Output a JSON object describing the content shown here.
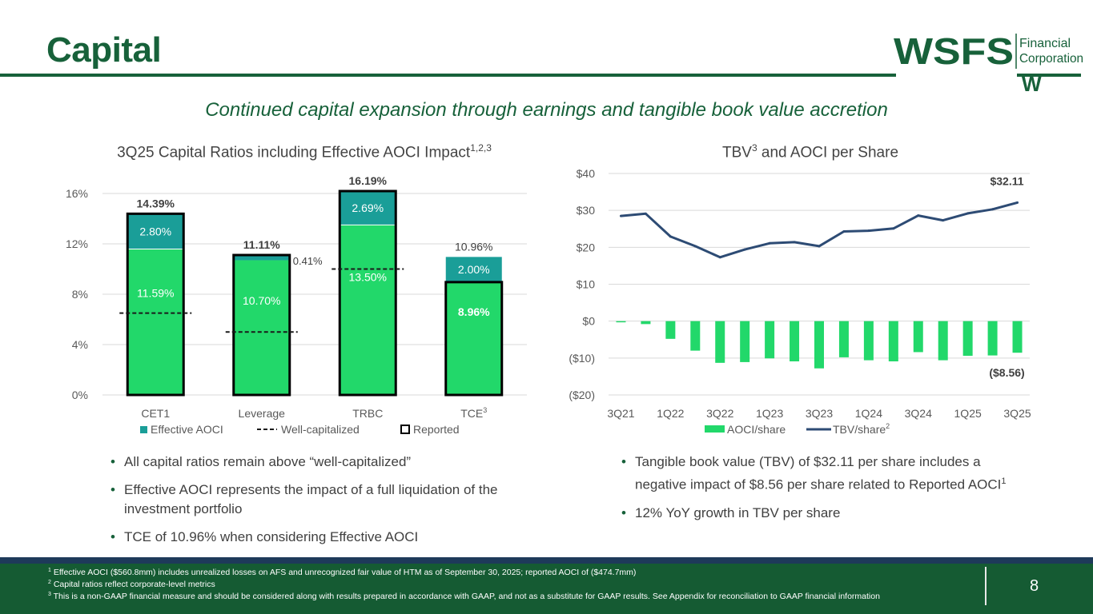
{
  "page": {
    "title": "Capital",
    "subtitle": "Continued capital expansion through earnings and tangible book value accretion",
    "page_number": "8",
    "logo": {
      "text_main": "WSFS",
      "text_line1": "Financial",
      "text_line2": "Corporation",
      "mark": "W"
    }
  },
  "colors": {
    "brand_green": "#17613a",
    "bar_green": "#22d86a",
    "aoci_teal": "#1a9e98",
    "line_navy": "#2d4b74",
    "footer_green": "#155b33",
    "footer_navy": "#1e3a5a"
  },
  "left_chart_title": {
    "text": "3Q25 Capital Ratios including Effective AOCI Impact",
    "sup": "1,2,3"
  },
  "right_chart_title": {
    "pre": "TBV",
    "sup": "3",
    "post": " and AOCI per Share"
  },
  "chart_data": [
    {
      "type": "bar",
      "title": "3Q25 Capital Ratios including Effective AOCI Impact",
      "categories": [
        "CET1",
        "Leverage",
        "TRBC",
        "TCE"
      ],
      "category_sups": [
        "",
        "",
        "",
        "3"
      ],
      "ylim": [
        0,
        16
      ],
      "yticks": [
        0,
        4,
        8,
        12,
        16
      ],
      "ytick_labels": [
        "0%",
        "4%",
        "8%",
        "12%",
        "16%"
      ],
      "series": [
        {
          "name": "Reported",
          "values": [
            11.59,
            10.7,
            13.5,
            8.96
          ],
          "labels": [
            "11.59%",
            "10.70%",
            "13.50%",
            "8.96%"
          ]
        },
        {
          "name": "Effective AOCI",
          "values": [
            2.8,
            0.41,
            2.69,
            2.0
          ],
          "labels": [
            "2.80%",
            "0.41%",
            "2.69%",
            "2.00%"
          ]
        }
      ],
      "totals": [
        14.39,
        11.11,
        16.19,
        10.96
      ],
      "total_labels": [
        "14.39%",
        "11.11%",
        "16.19%",
        "10.96%"
      ],
      "reported_outline_values": [
        14.39,
        11.11,
        16.19,
        8.96
      ],
      "well_capitalized": [
        6.5,
        5.0,
        10.0,
        null
      ],
      "legend": [
        {
          "name": "Effective AOCI",
          "type": "square"
        },
        {
          "name": "Well-capitalized",
          "type": "dash"
        },
        {
          "name": "Reported",
          "type": "outline"
        }
      ],
      "legend_placement": "bottom"
    },
    {
      "type": "bar",
      "title": "TBV and AOCI per Share",
      "x": [
        "3Q21",
        "4Q21",
        "1Q22",
        "2Q22",
        "3Q22",
        "4Q22",
        "1Q23",
        "2Q23",
        "3Q23",
        "4Q23",
        "1Q24",
        "2Q24",
        "3Q24",
        "4Q24",
        "1Q25",
        "2Q25",
        "3Q25"
      ],
      "xtick_labels": [
        "3Q21",
        "1Q22",
        "3Q22",
        "1Q23",
        "3Q23",
        "1Q24",
        "3Q24",
        "1Q25",
        "3Q25"
      ],
      "ylim": [
        -20,
        40
      ],
      "yticks": [
        -20,
        -10,
        0,
        10,
        20,
        30,
        40
      ],
      "ytick_labels": [
        "($20)",
        "($10)",
        "$0",
        "$10",
        "$20",
        "$30",
        "$40"
      ],
      "series": [
        {
          "name": "AOCI/share",
          "type": "bar",
          "values": [
            -0.3,
            -0.8,
            -4.8,
            -8.0,
            -11.3,
            -11.1,
            -10.1,
            -10.9,
            -12.8,
            -9.8,
            -10.6,
            -10.9,
            -8.4,
            -10.6,
            -9.4,
            -9.3,
            -8.56
          ]
        },
        {
          "name": "TBV/share",
          "sup": "2",
          "type": "line",
          "values": [
            28.5,
            29.1,
            22.9,
            20.3,
            17.3,
            19.4,
            21.1,
            21.4,
            20.3,
            24.3,
            24.5,
            25.1,
            28.6,
            27.3,
            29.2,
            30.3,
            32.11
          ]
        }
      ],
      "annotations": [
        {
          "text": "$32.11",
          "series": "TBV/share",
          "index": 16
        },
        {
          "text": "($8.56)",
          "series": "AOCI/share",
          "index": 16
        }
      ],
      "legend_placement": "bottom"
    }
  ],
  "left_bullets": [
    "All capital ratios remain above “well-capitalized”",
    "Effective AOCI represents the impact of a full liquidation of the investment portfolio",
    "TCE of 10.96% when considering Effective AOCI"
  ],
  "right_bullets": [
    {
      "text": "Tangible book value (TBV) of $32.11 per share includes a negative impact of $8.56 per share related to Reported AOCI",
      "sup": "1"
    },
    {
      "text": "12% YoY growth in TBV per share",
      "sup": ""
    }
  ],
  "footnotes": [
    {
      "num": "1",
      "text": " Effective AOCI ($560.8mm) includes unrealized losses on AFS and unrecognized fair value of HTM as of September 30, 2025; reported AOCI of ($474.7mm)"
    },
    {
      "num": "2",
      "text": " Capital ratios reflect corporate-level metrics"
    },
    {
      "num": "3",
      "text": " This is a non-GAAP financial measure and should be considered along with results prepared in accordance with GAAP, and not as a substitute for GAAP results.  See Appendix for reconciliation to GAAP financial information"
    }
  ]
}
